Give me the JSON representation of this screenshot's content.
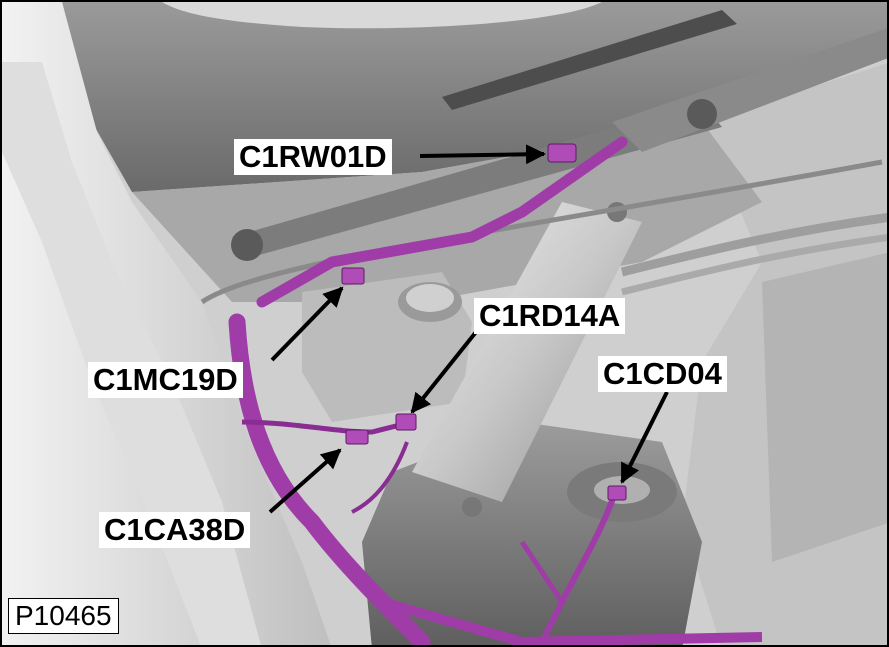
{
  "figure": {
    "id": "P10465"
  },
  "callouts": [
    {
      "name": "C1RW01D"
    },
    {
      "name": "C1MC19D"
    },
    {
      "name": "C1RD14A"
    },
    {
      "name": "C1CD04"
    },
    {
      "name": "C1CA38D"
    }
  ],
  "colors": {
    "harness": "#a03ca8",
    "harness_dark": "#6b1f72",
    "metal_light": "#e6e6e6",
    "metal_mid": "#b9b9b9",
    "metal_dark": "#6f6f6f",
    "background": "#d4d4d4"
  }
}
